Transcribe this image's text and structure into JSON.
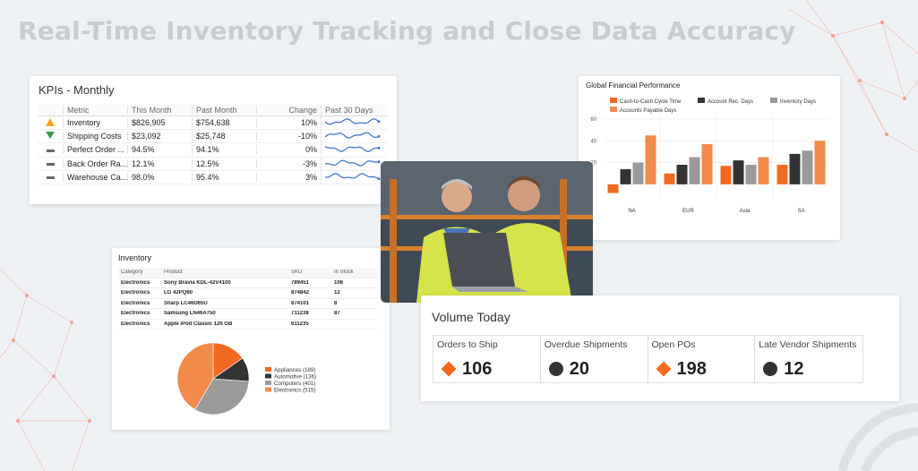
{
  "headline": "Real-Time Inventory Tracking and Close Data Accuracy",
  "kpi": {
    "title": "KPIs - Monthly",
    "columns": [
      "Metric",
      "This Month",
      "Past Month",
      "Change",
      "Past 30 Days"
    ],
    "rows": [
      {
        "icon": "warning-triangle-icon",
        "metric": "Inventory",
        "this_month": "$826,905",
        "past_month": "$754,638",
        "change": "10%"
      },
      {
        "icon": "down-arrow-icon",
        "metric": "Shipping Costs",
        "this_month": "$23,092",
        "past_month": "$25,748",
        "change": "-10%"
      },
      {
        "icon": "dash-icon",
        "metric": "Perfect Order ...",
        "this_month": "94.5%",
        "past_month": "94.1%",
        "change": "0%"
      },
      {
        "icon": "dash-icon",
        "metric": "Back Order Ra...",
        "this_month": "12.1%",
        "past_month": "12.5%",
        "change": "-3%"
      },
      {
        "icon": "dash-icon",
        "metric": "Warehouse Ca...",
        "this_month": "98.0%",
        "past_month": "95.4%",
        "change": "3%"
      }
    ],
    "colors": {
      "warning": "#f5a623",
      "down": "#3a9a4a",
      "sparkline": "#3a6fc4"
    }
  },
  "chart_data": [
    {
      "type": "bar",
      "title": "Global Financial Performance",
      "categories": [
        "NA",
        "EUR",
        "Asia",
        "SA"
      ],
      "series": [
        {
          "name": "Cash-to-Cash Cycle Time",
          "values": [
            -8,
            10,
            17,
            18
          ],
          "color": "#f26a21"
        },
        {
          "name": "Account Rec. Days",
          "values": [
            14,
            18,
            22,
            28
          ],
          "color": "#333333"
        },
        {
          "name": "Inventory Days",
          "values": [
            20,
            25,
            18,
            31
          ],
          "color": "#9a9a9a"
        },
        {
          "name": "Accounts Payable Days",
          "values": [
            45,
            37,
            25,
            40
          ],
          "color": "#f28a4a"
        }
      ],
      "y_ticks": [
        "60",
        "40",
        "20"
      ],
      "ylim": [
        -10,
        60
      ],
      "legend": "top",
      "grid": true
    },
    {
      "type": "pie",
      "categories": [
        "Appliances (189)",
        "Automotive (136)",
        "Computers (401)",
        "Electronics (515)"
      ],
      "values": [
        189,
        136,
        401,
        515
      ],
      "colors": [
        "#f26a21",
        "#333333",
        "#9a9a9a",
        "#f28a4a"
      ],
      "legend": "right"
    }
  ],
  "inventory": {
    "title": "Inventory",
    "columns": [
      "Category",
      "Product",
      "SKU",
      "In Stock"
    ],
    "rows": [
      {
        "category": "Electronics",
        "product": "Sony Bravia KDL-42V4100",
        "sku": "789451",
        "stock": "106"
      },
      {
        "category": "Electronics",
        "product": "LG 42PQ60",
        "sku": "874842",
        "stock": "12"
      },
      {
        "category": "Electronics",
        "product": "Sharp LC46D65U",
        "sku": "874101",
        "stock": "8"
      },
      {
        "category": "Electronics",
        "product": "Samsung LN46A750",
        "sku": "711238",
        "stock": "87"
      },
      {
        "category": "Electronics",
        "product": "Apple iPod Classic 120 GB",
        "sku": "611235",
        "stock": ""
      }
    ]
  },
  "volume": {
    "title": "Volume Today",
    "cells": [
      {
        "label": "Orders to Ship",
        "value": "106",
        "icon": "orange-diamond-icon"
      },
      {
        "label": "Overdue Shipments",
        "value": "20",
        "icon": "dark-circle-icon"
      },
      {
        "label": "Open POs",
        "value": "198",
        "icon": "orange-diamond-icon"
      },
      {
        "label": "Late Vendor Shipments",
        "value": "12",
        "icon": "dark-circle-icon"
      }
    ]
  },
  "photo": {
    "icon": "warehouse-workers-photo"
  }
}
